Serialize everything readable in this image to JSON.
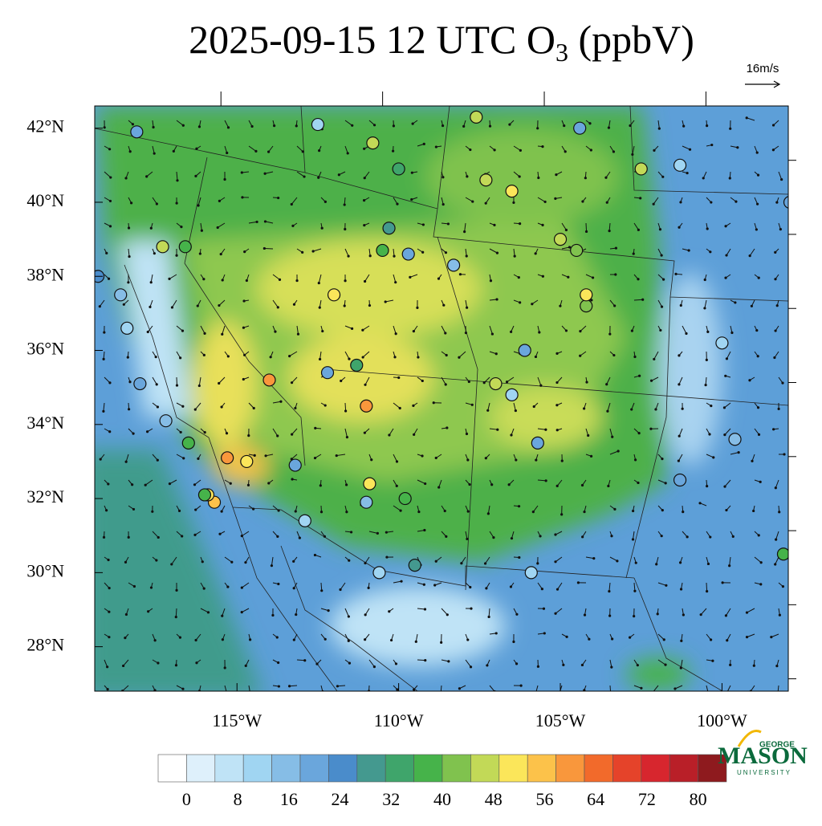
{
  "title": {
    "text": "2025-09-15 12 UTC O",
    "subscript": "3",
    "suffix": " (ppbV)"
  },
  "wind_reference": "16m/s",
  "lon_range": [
    -119.4,
    -97.95
  ],
  "lat_range": [
    26.8,
    42.6
  ],
  "latitudes": [
    {
      "value": 42,
      "label": "42°N"
    },
    {
      "value": 40,
      "label": "40°N"
    },
    {
      "value": 38,
      "label": "38°N"
    },
    {
      "value": 36,
      "label": "36°N"
    },
    {
      "value": 34,
      "label": "34°N"
    },
    {
      "value": 32,
      "label": "32°N"
    },
    {
      "value": 30,
      "label": "30°N"
    },
    {
      "value": 28,
      "label": "28°N"
    }
  ],
  "longitudes": [
    {
      "value": -115,
      "label": "115°W"
    },
    {
      "value": -110,
      "label": "110°W"
    },
    {
      "value": -105,
      "label": "105°W"
    },
    {
      "value": -100,
      "label": "100°W"
    }
  ],
  "colorbar": {
    "ticks": [
      0,
      8,
      16,
      24,
      32,
      40,
      48,
      56,
      64,
      72,
      80
    ],
    "colors": [
      "#ffffff",
      "#def0fb",
      "#bfe3f6",
      "#a0d5f2",
      "#86bde6",
      "#6aa6dc",
      "#4a8ccb",
      "#44998f",
      "#3fa56b",
      "#46b34a",
      "#80c24e",
      "#c2d957",
      "#fbe65a",
      "#fcc24a",
      "#f9973c",
      "#f26a2b",
      "#e5432a",
      "#d7262e",
      "#b91f28",
      "#8e1a1e"
    ]
  },
  "stations": [
    {
      "lon": -118.1,
      "lat": 41.9,
      "value": 22
    },
    {
      "lon": -112.5,
      "lat": 42.1,
      "value": 12
    },
    {
      "lon": -110.8,
      "lat": 41.6,
      "value": 48
    },
    {
      "lon": -107.6,
      "lat": 42.3,
      "value": 48
    },
    {
      "lon": -102.5,
      "lat": 40.9,
      "value": 46
    },
    {
      "lon": -101.3,
      "lat": 41.0,
      "value": 12
    },
    {
      "lon": -104.4,
      "lat": 42.0,
      "value": 22
    },
    {
      "lon": -104.5,
      "lat": 38.7,
      "value": 44
    },
    {
      "lon": -105.0,
      "lat": 39.0,
      "value": 48
    },
    {
      "lon": -106.5,
      "lat": 40.3,
      "value": 52
    },
    {
      "lon": -107.3,
      "lat": 40.6,
      "value": 46
    },
    {
      "lon": -110.0,
      "lat": 40.9,
      "value": 34
    },
    {
      "lon": -116.6,
      "lat": 38.8,
      "value": 36
    },
    {
      "lon": -117.3,
      "lat": 38.8,
      "value": 46
    },
    {
      "lon": -119.3,
      "lat": 38.0,
      "value": 24
    },
    {
      "lon": -118.6,
      "lat": 37.5,
      "value": 14
    },
    {
      "lon": -118.4,
      "lat": 36.6,
      "value": 12
    },
    {
      "lon": -118.0,
      "lat": 35.1,
      "value": 20
    },
    {
      "lon": -117.2,
      "lat": 34.1,
      "value": 16
    },
    {
      "lon": -116.5,
      "lat": 33.5,
      "value": 38
    },
    {
      "lon": -115.3,
      "lat": 33.1,
      "value": 60
    },
    {
      "lon": -115.7,
      "lat": 31.9,
      "value": 56
    },
    {
      "lon": -115.9,
      "lat": 32.1,
      "value": 52
    },
    {
      "lon": -114.7,
      "lat": 33.0,
      "value": 50
    },
    {
      "lon": -112.0,
      "lat": 37.5,
      "value": 52
    },
    {
      "lon": -111.0,
      "lat": 34.5,
      "value": 60
    },
    {
      "lon": -114.0,
      "lat": 35.2,
      "value": 58
    },
    {
      "lon": -112.2,
      "lat": 35.4,
      "value": 22
    },
    {
      "lon": -111.3,
      "lat": 35.6,
      "value": 34
    },
    {
      "lon": -110.9,
      "lat": 32.4,
      "value": 52
    },
    {
      "lon": -111.0,
      "lat": 31.9,
      "value": 14
    },
    {
      "lon": -109.8,
      "lat": 32.0,
      "value": 36
    },
    {
      "lon": -108.3,
      "lat": 38.3,
      "value": 14
    },
    {
      "lon": -106.5,
      "lat": 34.8,
      "value": 12
    },
    {
      "lon": -107.0,
      "lat": 35.1,
      "value": 46
    },
    {
      "lon": -105.7,
      "lat": 33.5,
      "value": 22
    },
    {
      "lon": -104.2,
      "lat": 37.2,
      "value": 44
    },
    {
      "lon": -104.2,
      "lat": 37.5,
      "value": 52
    },
    {
      "lon": -100.0,
      "lat": 36.2,
      "value": 12
    },
    {
      "lon": -99.6,
      "lat": 33.6,
      "value": 14
    },
    {
      "lon": -101.3,
      "lat": 32.5,
      "value": 20
    },
    {
      "lon": -97.9,
      "lat": 40.0,
      "value": 20
    },
    {
      "lon": -98.1,
      "lat": 30.5,
      "value": 38
    },
    {
      "lon": -105.9,
      "lat": 30.0,
      "value": 12
    },
    {
      "lon": -110.6,
      "lat": 30.0,
      "value": 12
    },
    {
      "lon": -112.9,
      "lat": 31.4,
      "value": 12
    },
    {
      "lon": -116.0,
      "lat": 32.1,
      "value": 38
    },
    {
      "lon": -113.2,
      "lat": 32.9,
      "value": 22
    },
    {
      "lon": -109.5,
      "lat": 30.2,
      "value": 30
    },
    {
      "lon": -106.1,
      "lat": 36.0,
      "value": 22
    },
    {
      "lon": -110.5,
      "lat": 38.7,
      "value": 36
    },
    {
      "lon": -110.3,
      "lat": 39.3,
      "value": 30
    },
    {
      "lon": -109.7,
      "lat": 38.6,
      "value": 20
    }
  ],
  "logo": {
    "top": "GEORGE",
    "name": "MASON",
    "bottom": "UNIVERSITY"
  }
}
